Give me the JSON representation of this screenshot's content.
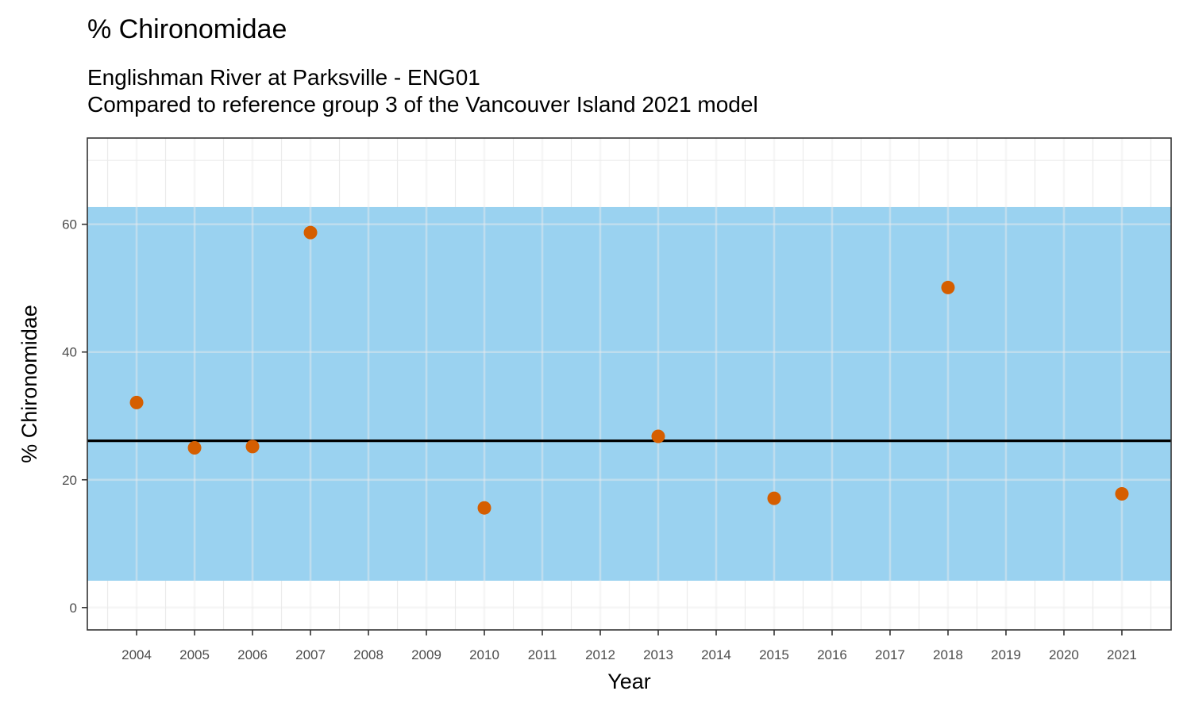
{
  "chart_data": {
    "type": "scatter",
    "title": "% Chironomidae",
    "subtitle": [
      "Englishman River at Parksville - ENG01",
      "Compared to reference group 3 of the Vancouver Island 2021 model"
    ],
    "xlabel": "Year",
    "ylabel": "% Chironomidae",
    "xlim": [
      2003.15,
      2021.85
    ],
    "ylim": [
      -3.5,
      73.5
    ],
    "x_ticks": [
      2004,
      2005,
      2006,
      2007,
      2008,
      2009,
      2010,
      2011,
      2012,
      2013,
      2014,
      2015,
      2016,
      2017,
      2018,
      2019,
      2020,
      2021
    ],
    "y_ticks": [
      0,
      20,
      40,
      60
    ],
    "grid": true,
    "reference_band": {
      "low": 4.2,
      "high": 62.7,
      "color": "#9ad2f0"
    },
    "reference_line": {
      "y": 26.1,
      "color": "#000000"
    },
    "points": {
      "color": "#d55e00",
      "x": [
        2004,
        2005,
        2006,
        2007,
        2010,
        2013,
        2015,
        2018,
        2021
      ],
      "y": [
        32.1,
        25.0,
        25.2,
        58.7,
        15.6,
        26.8,
        17.1,
        50.1,
        17.8
      ]
    }
  }
}
